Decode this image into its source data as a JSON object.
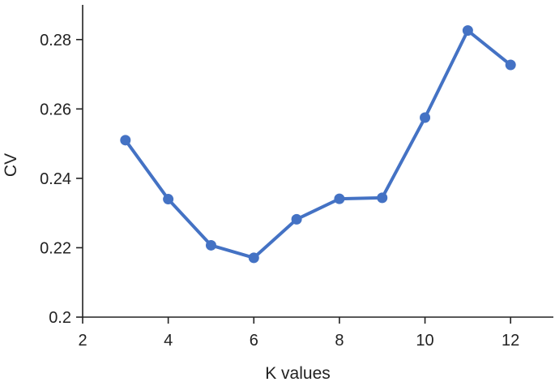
{
  "chart_data": {
    "type": "line",
    "title": "",
    "xlabel": "K values",
    "ylabel": "CV",
    "xlim": [
      2,
      13
    ],
    "ylim": [
      0.2,
      0.29
    ],
    "xticks": [
      2,
      4,
      6,
      8,
      10,
      12
    ],
    "yticks": [
      0.2,
      0.22,
      0.24,
      0.26,
      0.28
    ],
    "ytick_labels": [
      "0.2",
      "0.22",
      "0.24",
      "0.26",
      "0.28"
    ],
    "grid": false,
    "legend": "none",
    "series": [
      {
        "color": "#4472c4",
        "x": [
          3,
          4,
          5,
          6,
          7,
          8,
          9,
          10,
          11,
          12
        ],
        "y": [
          0.251,
          0.234,
          0.2207,
          0.2171,
          0.2282,
          0.2341,
          0.2344,
          0.2575,
          0.2826,
          0.2727
        ]
      }
    ]
  }
}
